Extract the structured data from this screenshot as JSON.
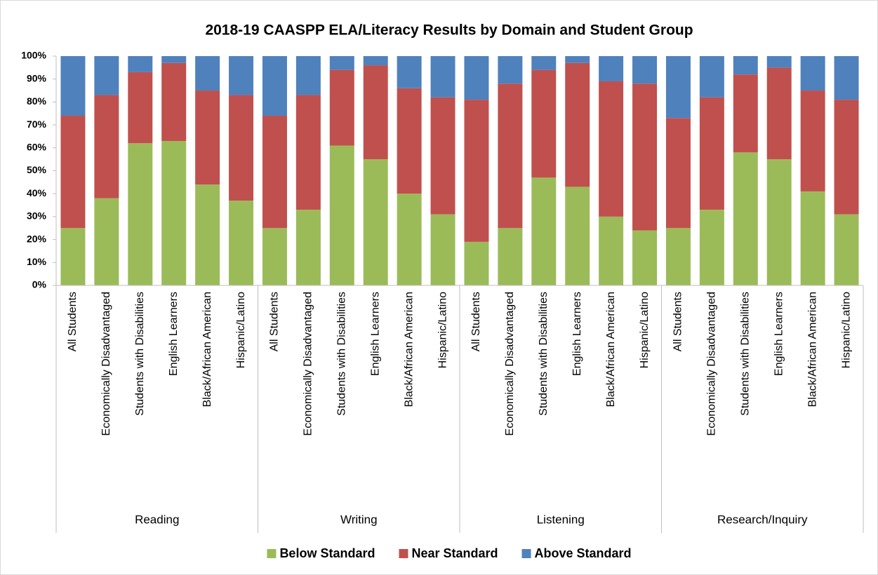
{
  "chart_data": {
    "type": "stacked_bar_100",
    "title": "2018-19 CAASPP ELA/Literacy  Results by Domain and Student Group",
    "groups": [
      {
        "name": "Reading",
        "categories": [
          "All Students",
          "Economically Disadvantaged",
          "Students with Disabilities",
          "English Learners",
          "Black/African American",
          "Hispanic/Latino"
        ]
      },
      {
        "name": "Writing",
        "categories": [
          "All Students",
          "Economically Disadvantaged",
          "Students with Disabilities",
          "English Learners",
          "Black/African American",
          "Hispanic/Latino"
        ]
      },
      {
        "name": "Listening",
        "categories": [
          "All Students",
          "Economically Disadvantaged",
          "Students with Disabilities",
          "English Learners",
          "Black/African American",
          "Hispanic/Latino"
        ]
      },
      {
        "name": "Research/Inquiry",
        "categories": [
          "All Students",
          "Economically Disadvantaged",
          "Students with Disabilities",
          "English Learners",
          "Black/African American",
          "Hispanic/Latino"
        ]
      }
    ],
    "series": [
      {
        "name": "Below Standard",
        "color": "#9bbb59",
        "values": [
          25,
          38,
          62,
          63,
          44,
          37,
          25,
          33,
          61,
          55,
          40,
          31,
          19,
          25,
          47,
          43,
          30,
          24,
          25,
          33,
          58,
          55,
          41,
          31
        ]
      },
      {
        "name": "Near Standard",
        "color": "#c0504d",
        "values": [
          49,
          45,
          31,
          34,
          41,
          46,
          49,
          50,
          33,
          41,
          46,
          51,
          62,
          63,
          47,
          54,
          59,
          64,
          48,
          49,
          34,
          40,
          44,
          50
        ]
      },
      {
        "name": "Above Standard",
        "color": "#4f81bd",
        "values": [
          26,
          17,
          7,
          3,
          15,
          17,
          26,
          17,
          6,
          4,
          14,
          18,
          19,
          12,
          6,
          3,
          11,
          12,
          27,
          18,
          8,
          5,
          15,
          19
        ]
      }
    ],
    "ylim": [
      0,
      100
    ],
    "yticks": [
      {
        "value": 0,
        "label": "0%"
      },
      {
        "value": 10,
        "label": "10%"
      },
      {
        "value": 20,
        "label": "20%"
      },
      {
        "value": 30,
        "label": "30%"
      },
      {
        "value": 40,
        "label": "40%"
      },
      {
        "value": 50,
        "label": "50%"
      },
      {
        "value": 60,
        "label": "60%"
      },
      {
        "value": 70,
        "label": "70%"
      },
      {
        "value": 80,
        "label": "80%"
      },
      {
        "value": 90,
        "label": "90%"
      },
      {
        "value": 100,
        "label": "100%"
      }
    ],
    "grid": false,
    "legend": "bottom"
  }
}
